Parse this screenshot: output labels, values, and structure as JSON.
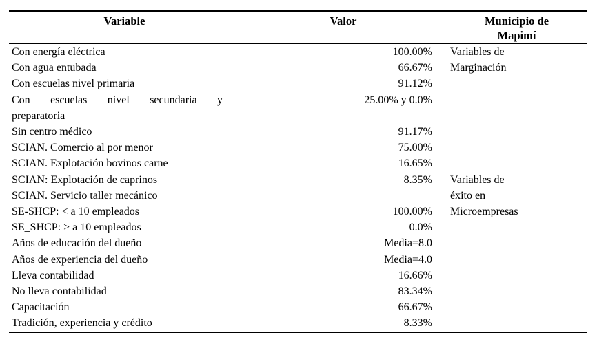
{
  "page": {
    "background": "#ffffff",
    "text_color": "#000000",
    "rule_color": "#000000"
  },
  "table": {
    "headers": {
      "variable": "Variable",
      "valor": "Valor",
      "municipio": "Municipio de Mapimí"
    },
    "row_groups": [
      "Variables de Marginación",
      "Variables de éxito en Microempresas"
    ],
    "rows": [
      {
        "variable_lines": [
          "Con energía eléctrica"
        ],
        "valor": "100.00%",
        "municipio": "Variables de"
      },
      {
        "variable_lines": [
          "Con agua entubada"
        ],
        "valor": "66.67%",
        "municipio": "Marginación"
      },
      {
        "variable_lines": [
          "Con escuelas nivel primaria"
        ],
        "valor": "91.12%",
        "municipio": ""
      },
      {
        "variable_lines": [
          "Con escuelas nivel secundaria y",
          "preparatoria"
        ],
        "valor": "25.00% y 0.0%",
        "municipio": ""
      },
      {
        "variable_lines": [
          "Sin centro médico"
        ],
        "valor": "91.17%",
        "municipio": ""
      },
      {
        "variable_lines": [
          "SCIAN. Comercio al por menor"
        ],
        "valor": "75.00%",
        "municipio": ""
      },
      {
        "variable_lines": [
          "SCIAN. Explotación bovinos carne"
        ],
        "valor": "16.65%",
        "municipio": ""
      },
      {
        "variable_lines": [
          "SCIAN: Explotación de caprinos"
        ],
        "valor": "8.35%",
        "municipio": "Variables de"
      },
      {
        "variable_lines": [
          "SCIAN. Servicio taller mecánico"
        ],
        "valor": "",
        "municipio": "éxito en"
      },
      {
        "variable_lines": [
          "SE-SHCP: < a 10 empleados"
        ],
        "valor": "100.00%",
        "municipio": "Microempresas"
      },
      {
        "variable_lines": [
          "SE_SHCP: > a 10 empleados"
        ],
        "valor": "0.0%",
        "municipio": ""
      },
      {
        "variable_lines": [
          "Años de educación del dueño"
        ],
        "valor": "Media=8.0",
        "municipio": ""
      },
      {
        "variable_lines": [
          "Años de experiencia del dueño"
        ],
        "valor": "Media=4.0",
        "municipio": ""
      },
      {
        "variable_lines": [
          "Lleva contabilidad"
        ],
        "valor": "16.66%",
        "municipio": ""
      },
      {
        "variable_lines": [
          "No lleva contabilidad"
        ],
        "valor": "83.34%",
        "municipio": ""
      },
      {
        "variable_lines": [
          "Capacitación"
        ],
        "valor": "66.67%",
        "municipio": ""
      },
      {
        "variable_lines": [
          "Tradición, experiencia y crédito"
        ],
        "valor": "8.33%",
        "municipio": ""
      }
    ]
  }
}
